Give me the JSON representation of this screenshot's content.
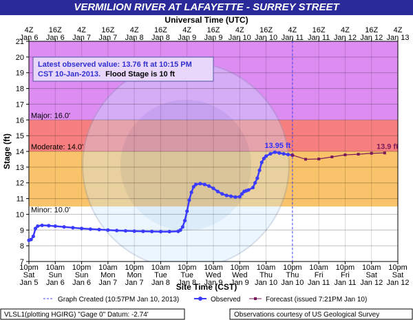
{
  "chart_data": {
    "type": "line",
    "title": "VERMILION RIVER AT LAFAYETTE - SURREY STREET",
    "top_axis_label": "Universal Time (UTC)",
    "xlabel": "Site Time (CST)",
    "ylabel": "Stage (ft)",
    "ylim": [
      7,
      21
    ],
    "yticks": [
      7,
      8,
      9,
      10,
      11,
      12,
      13,
      14,
      15,
      16,
      17,
      18,
      19,
      20,
      21
    ],
    "x_range_hours": [
      0,
      168
    ],
    "grid": true,
    "top_ticks": [
      {
        "t": 0,
        "time": "4Z",
        "date": "Jan 6"
      },
      {
        "t": 12,
        "time": "16Z",
        "date": "Jan 6"
      },
      {
        "t": 24,
        "time": "4Z",
        "date": "Jan 7"
      },
      {
        "t": 36,
        "time": "16Z",
        "date": "Jan 7"
      },
      {
        "t": 48,
        "time": "4Z",
        "date": "Jan 8"
      },
      {
        "t": 60,
        "time": "16Z",
        "date": "Jan 8"
      },
      {
        "t": 72,
        "time": "4Z",
        "date": "Jan 9"
      },
      {
        "t": 84,
        "time": "16Z",
        "date": "Jan 9"
      },
      {
        "t": 96,
        "time": "4Z",
        "date": "Jan 10"
      },
      {
        "t": 108,
        "time": "16Z",
        "date": "Jan 10"
      },
      {
        "t": 120,
        "time": "4Z",
        "date": "Jan 11"
      },
      {
        "t": 132,
        "time": "16Z",
        "date": "Jan 11"
      },
      {
        "t": 144,
        "time": "4Z",
        "date": "Jan 12"
      },
      {
        "t": 156,
        "time": "16Z",
        "date": "Jan 12"
      },
      {
        "t": 168,
        "time": "4Z",
        "date": "Jan 13"
      }
    ],
    "bottom_ticks": [
      {
        "t": 0,
        "time": "10pm",
        "day": "Sat",
        "date": "Jan 5"
      },
      {
        "t": 12,
        "time": "10am",
        "day": "Sun",
        "date": "Jan 6"
      },
      {
        "t": 24,
        "time": "10pm",
        "day": "Sun",
        "date": "Jan 6"
      },
      {
        "t": 36,
        "time": "10am",
        "day": "Mon",
        "date": "Jan 7"
      },
      {
        "t": 48,
        "time": "10pm",
        "day": "Mon",
        "date": "Jan 7"
      },
      {
        "t": 60,
        "time": "10am",
        "day": "Tue",
        "date": "Jan 8"
      },
      {
        "t": 72,
        "time": "10pm",
        "day": "Tue",
        "date": "Jan 8"
      },
      {
        "t": 84,
        "time": "10am",
        "day": "Wed",
        "date": "Jan 9"
      },
      {
        "t": 96,
        "time": "10pm",
        "day": "Wed",
        "date": "Jan 9"
      },
      {
        "t": 108,
        "time": "10am",
        "day": "Thu",
        "date": "Jan 10"
      },
      {
        "t": 120,
        "time": "10pm",
        "day": "Thu",
        "date": "Jan 10"
      },
      {
        "t": 132,
        "time": "10am",
        "day": "Fri",
        "date": "Jan 11"
      },
      {
        "t": 144,
        "time": "10pm",
        "day": "Fri",
        "date": "Jan 11"
      },
      {
        "t": 156,
        "time": "10am",
        "day": "Sat",
        "date": "Jan 12"
      },
      {
        "t": 168,
        "time": "10pm",
        "day": "Sat",
        "date": "Jan 12"
      }
    ],
    "flood_categories": [
      {
        "name": "Minor",
        "label": "Minor: 10.0'",
        "from": 10,
        "to": 14,
        "color": "#f9c36b"
      },
      {
        "name": "Moderate",
        "label": "Moderate: 14.0'",
        "from": 14,
        "to": 16,
        "color": "#f77f7f"
      },
      {
        "name": "Major",
        "label": "Major: 16.0'",
        "from": 16,
        "to": 21,
        "color": "#dd8cf2"
      }
    ],
    "graph_created_t": 120,
    "info_box": {
      "line1": "Latest observed value: 13.76 ft at 10:15 PM",
      "line2a": "CST 10-Jan-2013.",
      "line2b": "Flood Stage is 10 ft"
    },
    "annotations": [
      {
        "text": "13.95 ft",
        "series": "observed",
        "t": 112,
        "y": 13.95
      },
      {
        "text": "13.9 ft",
        "series": "forecast",
        "t": 162,
        "y": 13.9
      }
    ],
    "series": [
      {
        "name": "Observed",
        "color": "#3b3bff",
        "points": [
          [
            0,
            8.35
          ],
          [
            1,
            8.4
          ],
          [
            2,
            8.6
          ],
          [
            3,
            9.1
          ],
          [
            4,
            9.25
          ],
          [
            6,
            9.3
          ],
          [
            9,
            9.28
          ],
          [
            12,
            9.25
          ],
          [
            16,
            9.2
          ],
          [
            20,
            9.15
          ],
          [
            24,
            9.1
          ],
          [
            28,
            9.06
          ],
          [
            32,
            9.03
          ],
          [
            36,
            9.0
          ],
          [
            40,
            8.97
          ],
          [
            44,
            8.95
          ],
          [
            48,
            8.93
          ],
          [
            52,
            8.92
          ],
          [
            56,
            8.91
          ],
          [
            60,
            8.9
          ],
          [
            64,
            8.9
          ],
          [
            68,
            8.92
          ],
          [
            69,
            9.0
          ],
          [
            70,
            9.2
          ],
          [
            71,
            9.6
          ],
          [
            72,
            10.2
          ],
          [
            73,
            10.9
          ],
          [
            74,
            11.4
          ],
          [
            75,
            11.75
          ],
          [
            76,
            11.9
          ],
          [
            78,
            11.95
          ],
          [
            80,
            11.9
          ],
          [
            82,
            11.8
          ],
          [
            84,
            11.65
          ],
          [
            86,
            11.45
          ],
          [
            88,
            11.3
          ],
          [
            90,
            11.2
          ],
          [
            92,
            11.15
          ],
          [
            94,
            11.1
          ],
          [
            96,
            11.12
          ],
          [
            97,
            11.3
          ],
          [
            98,
            11.45
          ],
          [
            99,
            11.5
          ],
          [
            100,
            11.55
          ],
          [
            102,
            11.7
          ],
          [
            103,
            12.0
          ],
          [
            104,
            12.3
          ],
          [
            105,
            12.8
          ],
          [
            106,
            13.3
          ],
          [
            107,
            13.55
          ],
          [
            108,
            13.7
          ],
          [
            110,
            13.85
          ],
          [
            112,
            13.95
          ],
          [
            114,
            13.9
          ],
          [
            116,
            13.85
          ],
          [
            118,
            13.8
          ],
          [
            120,
            13.76
          ]
        ]
      },
      {
        "name": "Forecast (issued 7:21PM Jan 10)",
        "color": "#7a1a5a",
        "points": [
          [
            120,
            13.76
          ],
          [
            126,
            13.5
          ],
          [
            132,
            13.52
          ],
          [
            138,
            13.65
          ],
          [
            144,
            13.78
          ],
          [
            150,
            13.82
          ],
          [
            156,
            13.88
          ],
          [
            162,
            13.9
          ]
        ]
      }
    ],
    "legend": {
      "graph_created": "Graph Created (10:57PM Jan 10, 2013)",
      "observed": "Observed",
      "forecast": "Forecast (issued 7:21PM Jan 10)"
    },
    "footer": {
      "left": "VLSL1(plotting HGIRG) \"Gage 0\" Datum: -2.74'",
      "right": "Observations courtesy of US Geological Survey"
    }
  }
}
